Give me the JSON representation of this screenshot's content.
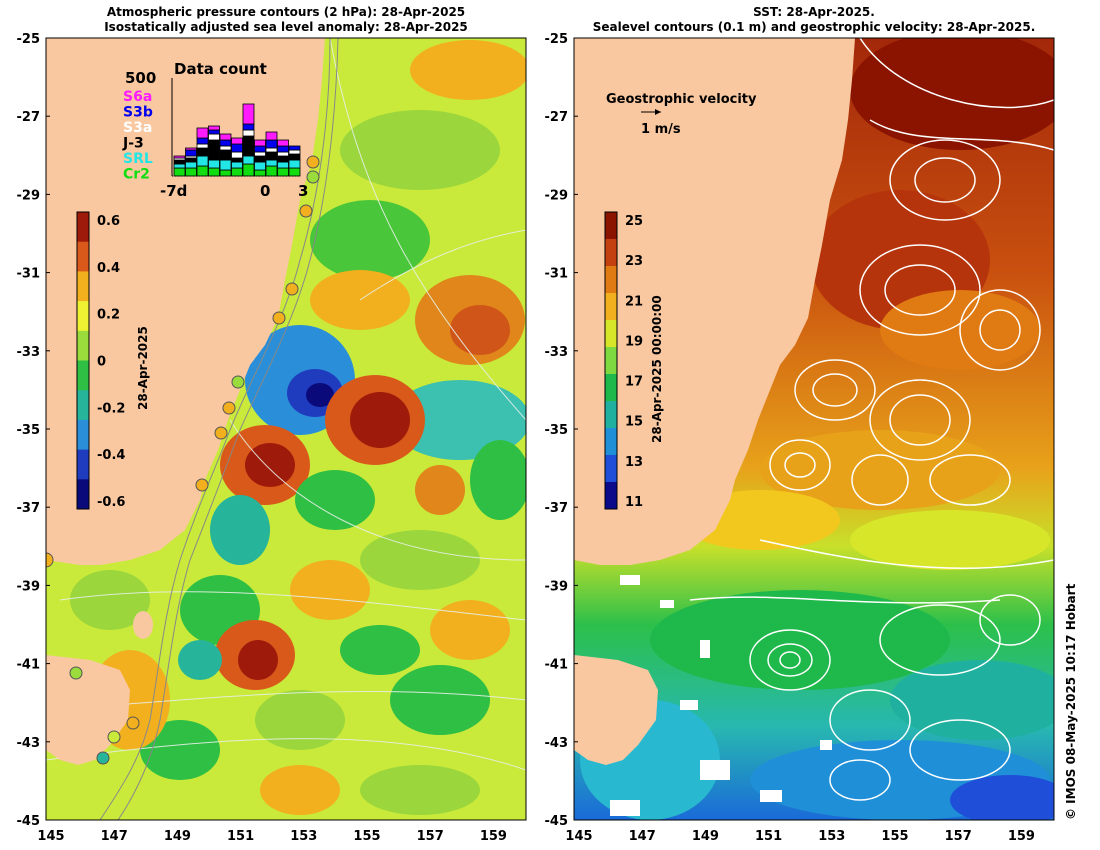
{
  "left_panel": {
    "title_line1": "Atmospheric pressure contours (2 hPa): 28-Apr-2025",
    "title_line2": "Isostatically adjusted sea level anomaly: 28-Apr-2025",
    "colorbar": {
      "ticks": [
        "0.6",
        "0.4",
        "0.2",
        "0",
        "-0.2",
        "-0.4",
        "-0.6"
      ],
      "label": "28-Apr-2025",
      "colors": [
        "#9e1a0a",
        "#d9591a",
        "#f2b01e",
        "#eef233",
        "#9adc3c",
        "#2fbf45",
        "#26b49a",
        "#2a8fd8",
        "#1f3cbf",
        "#0a0a7a"
      ]
    },
    "inset": {
      "title": "Data count",
      "max_label": "500",
      "satellites": [
        {
          "name": "S6a",
          "color": "#ff1aff"
        },
        {
          "name": "S3b",
          "color": "#0000ee"
        },
        {
          "name": "S3a",
          "color": "#ffffff"
        },
        {
          "name": "J-3",
          "color": "#000000"
        },
        {
          "name": "SRL",
          "color": "#22e6e6"
        },
        {
          "name": "Cr2",
          "color": "#11dd11"
        }
      ],
      "xticks": [
        "-7d",
        "0",
        "3"
      ]
    }
  },
  "right_panel": {
    "title_line1": "SST: 28-Apr-2025.",
    "title_line2": "Sealevel contours (0.1 m) and geostrophic velocity: 28-Apr-2025.",
    "velocity_legend": {
      "label": "Geostrophic velocity",
      "scale": "1 m/s"
    },
    "colorbar": {
      "ticks": [
        "25",
        "23",
        "21",
        "19",
        "17",
        "15",
        "13",
        "11"
      ],
      "label": "28-Apr-2025 00:00:00",
      "colors": [
        "#8a1400",
        "#c4400e",
        "#e07a12",
        "#f2b01e",
        "#d8e62a",
        "#7ed840",
        "#1fb84a",
        "#1fb0a0",
        "#1f8fd8",
        "#1f4fd8",
        "#0a0a8a"
      ]
    }
  },
  "axes": {
    "lat_ticks": [
      "-25",
      "-27",
      "-29",
      "-31",
      "-33",
      "-35",
      "-37",
      "-39",
      "-41",
      "-43",
      "-45"
    ],
    "lon_ticks": [
      "145",
      "147",
      "149",
      "151",
      "153",
      "155",
      "157",
      "159"
    ]
  },
  "colors": {
    "land": "#f9c8a0"
  },
  "credit": "© IMOS 08-May-2025 10:17 Hobart"
}
